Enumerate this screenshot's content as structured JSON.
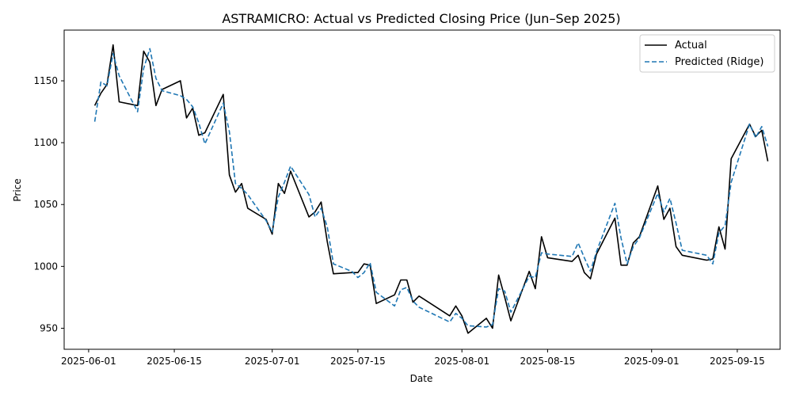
{
  "chart_data": {
    "type": "line",
    "title": "ASTRAMICRO: Actual vs Predicted Closing Price (Jun–Sep 2025)",
    "xlabel": "Date",
    "ylabel": "Price",
    "x_ticks": [
      "2025-06-01",
      "2025-06-15",
      "2025-07-01",
      "2025-07-15",
      "2025-08-01",
      "2025-08-15",
      "2025-09-01",
      "2025-09-15"
    ],
    "y_ticks": [
      950,
      1000,
      1050,
      1100,
      1150
    ],
    "xlim": [
      "2025-05-28",
      "2025-09-22"
    ],
    "ylim": [
      933,
      1191
    ],
    "legend_position": "top-right",
    "grid": false,
    "series": [
      {
        "name": "Actual",
        "color": "#000000",
        "style": "solid",
        "points": [
          [
            "2025-06-02",
            1130
          ],
          [
            "2025-06-03",
            1140
          ],
          [
            "2025-06-04",
            1147
          ],
          [
            "2025-06-05",
            1179
          ],
          [
            "2025-06-06",
            1133
          ],
          [
            "2025-06-09",
            1130
          ],
          [
            "2025-06-10",
            1174
          ],
          [
            "2025-06-11",
            1165
          ],
          [
            "2025-06-12",
            1130
          ],
          [
            "2025-06-13",
            1143
          ],
          [
            "2025-06-16",
            1150
          ],
          [
            "2025-06-17",
            1120
          ],
          [
            "2025-06-18",
            1128
          ],
          [
            "2025-06-19",
            1106
          ],
          [
            "2025-06-20",
            1108
          ],
          [
            "2025-06-23",
            1139
          ],
          [
            "2025-06-24",
            1074
          ],
          [
            "2025-06-25",
            1060
          ],
          [
            "2025-06-26",
            1067
          ],
          [
            "2025-06-27",
            1047
          ],
          [
            "2025-06-30",
            1038
          ],
          [
            "2025-07-01",
            1026
          ],
          [
            "2025-07-02",
            1067
          ],
          [
            "2025-07-03",
            1059
          ],
          [
            "2025-07-04",
            1077
          ],
          [
            "2025-07-07",
            1040
          ],
          [
            "2025-07-08",
            1044
          ],
          [
            "2025-07-09",
            1052
          ],
          [
            "2025-07-10",
            1020
          ],
          [
            "2025-07-11",
            994
          ],
          [
            "2025-07-14",
            995
          ],
          [
            "2025-07-15",
            995
          ],
          [
            "2025-07-16",
            1002
          ],
          [
            "2025-07-17",
            1001
          ],
          [
            "2025-07-18",
            970
          ],
          [
            "2025-07-21",
            977
          ],
          [
            "2025-07-22",
            989
          ],
          [
            "2025-07-23",
            989
          ],
          [
            "2025-07-24",
            971
          ],
          [
            "2025-07-25",
            976
          ],
          [
            "2025-07-30",
            960
          ],
          [
            "2025-07-31",
            968
          ],
          [
            "2025-08-01",
            960
          ],
          [
            "2025-08-02",
            946
          ],
          [
            "2025-08-05",
            958
          ],
          [
            "2025-08-06",
            950
          ],
          [
            "2025-08-07",
            993
          ],
          [
            "2025-08-08",
            975
          ],
          [
            "2025-08-09",
            956
          ],
          [
            "2025-08-12",
            996
          ],
          [
            "2025-08-13",
            982
          ],
          [
            "2025-08-14",
            1024
          ],
          [
            "2025-08-15",
            1007
          ],
          [
            "2025-08-19",
            1004
          ],
          [
            "2025-08-20",
            1009
          ],
          [
            "2025-08-21",
            995
          ],
          [
            "2025-08-22",
            990
          ],
          [
            "2025-08-23",
            1010
          ],
          [
            "2025-08-26",
            1039
          ],
          [
            "2025-08-27",
            1001
          ],
          [
            "2025-08-28",
            1001
          ],
          [
            "2025-08-29",
            1019
          ],
          [
            "2025-08-30",
            1024
          ],
          [
            "2025-09-02",
            1065
          ],
          [
            "2025-09-03",
            1038
          ],
          [
            "2025-09-04",
            1047
          ],
          [
            "2025-09-05",
            1016
          ],
          [
            "2025-09-06",
            1009
          ],
          [
            "2025-09-10",
            1005
          ],
          [
            "2025-09-11",
            1006
          ],
          [
            "2025-09-12",
            1032
          ],
          [
            "2025-09-13",
            1014
          ],
          [
            "2025-09-14",
            1087
          ],
          [
            "2025-09-17",
            1115
          ],
          [
            "2025-09-18",
            1105
          ],
          [
            "2025-09-19",
            1110
          ],
          [
            "2025-09-20",
            1085
          ]
        ]
      },
      {
        "name": "Predicted (Ridge)",
        "color": "#1f77b4",
        "style": "dashed",
        "points": [
          [
            "2025-06-02",
            1117
          ],
          [
            "2025-06-03",
            1149
          ],
          [
            "2025-06-04",
            1146
          ],
          [
            "2025-06-05",
            1172
          ],
          [
            "2025-06-06",
            1154
          ],
          [
            "2025-06-09",
            1125
          ],
          [
            "2025-06-10",
            1160
          ],
          [
            "2025-06-11",
            1176
          ],
          [
            "2025-06-12",
            1152
          ],
          [
            "2025-06-13",
            1142
          ],
          [
            "2025-06-16",
            1138
          ],
          [
            "2025-06-17",
            1135
          ],
          [
            "2025-06-18",
            1129
          ],
          [
            "2025-06-19",
            1116
          ],
          [
            "2025-06-20",
            1099
          ],
          [
            "2025-06-23",
            1132
          ],
          [
            "2025-06-24",
            1109
          ],
          [
            "2025-06-25",
            1067
          ],
          [
            "2025-06-26",
            1063
          ],
          [
            "2025-06-27",
            1058
          ],
          [
            "2025-06-30",
            1037
          ],
          [
            "2025-07-01",
            1028
          ],
          [
            "2025-07-02",
            1056
          ],
          [
            "2025-07-03",
            1068
          ],
          [
            "2025-07-04",
            1081
          ],
          [
            "2025-07-07",
            1058
          ],
          [
            "2025-07-08",
            1040
          ],
          [
            "2025-07-09",
            1047
          ],
          [
            "2025-07-10",
            1032
          ],
          [
            "2025-07-11",
            1002
          ],
          [
            "2025-07-14",
            996
          ],
          [
            "2025-07-15",
            991
          ],
          [
            "2025-07-16",
            995
          ],
          [
            "2025-07-17",
            1003
          ],
          [
            "2025-07-18",
            979
          ],
          [
            "2025-07-21",
            968
          ],
          [
            "2025-07-22",
            981
          ],
          [
            "2025-07-23",
            983
          ],
          [
            "2025-07-24",
            972
          ],
          [
            "2025-07-25",
            967
          ],
          [
            "2025-07-30",
            955
          ],
          [
            "2025-07-31",
            962
          ],
          [
            "2025-08-01",
            958
          ],
          [
            "2025-08-02",
            952
          ],
          [
            "2025-08-05",
            951
          ],
          [
            "2025-08-06",
            953
          ],
          [
            "2025-08-07",
            982
          ],
          [
            "2025-08-08",
            980
          ],
          [
            "2025-08-09",
            963
          ],
          [
            "2025-08-12",
            992
          ],
          [
            "2025-08-13",
            991
          ],
          [
            "2025-08-14",
            1011
          ],
          [
            "2025-08-15",
            1010
          ],
          [
            "2025-08-19",
            1008
          ],
          [
            "2025-08-20",
            1019
          ],
          [
            "2025-08-21",
            1007
          ],
          [
            "2025-08-22",
            996
          ],
          [
            "2025-08-23",
            1012
          ],
          [
            "2025-08-26",
            1051
          ],
          [
            "2025-08-27",
            1023
          ],
          [
            "2025-08-28",
            1002
          ],
          [
            "2025-08-29",
            1016
          ],
          [
            "2025-08-30",
            1023
          ],
          [
            "2025-09-02",
            1059
          ],
          [
            "2025-09-03",
            1044
          ],
          [
            "2025-09-04",
            1055
          ],
          [
            "2025-09-05",
            1035
          ],
          [
            "2025-09-06",
            1013
          ],
          [
            "2025-09-10",
            1009
          ],
          [
            "2025-09-11",
            1002
          ],
          [
            "2025-09-12",
            1027
          ],
          [
            "2025-09-13",
            1033
          ],
          [
            "2025-09-14",
            1068
          ],
          [
            "2025-09-17",
            1115
          ],
          [
            "2025-09-18",
            1104
          ],
          [
            "2025-09-19",
            1113
          ],
          [
            "2025-09-20",
            1097
          ]
        ]
      }
    ]
  }
}
